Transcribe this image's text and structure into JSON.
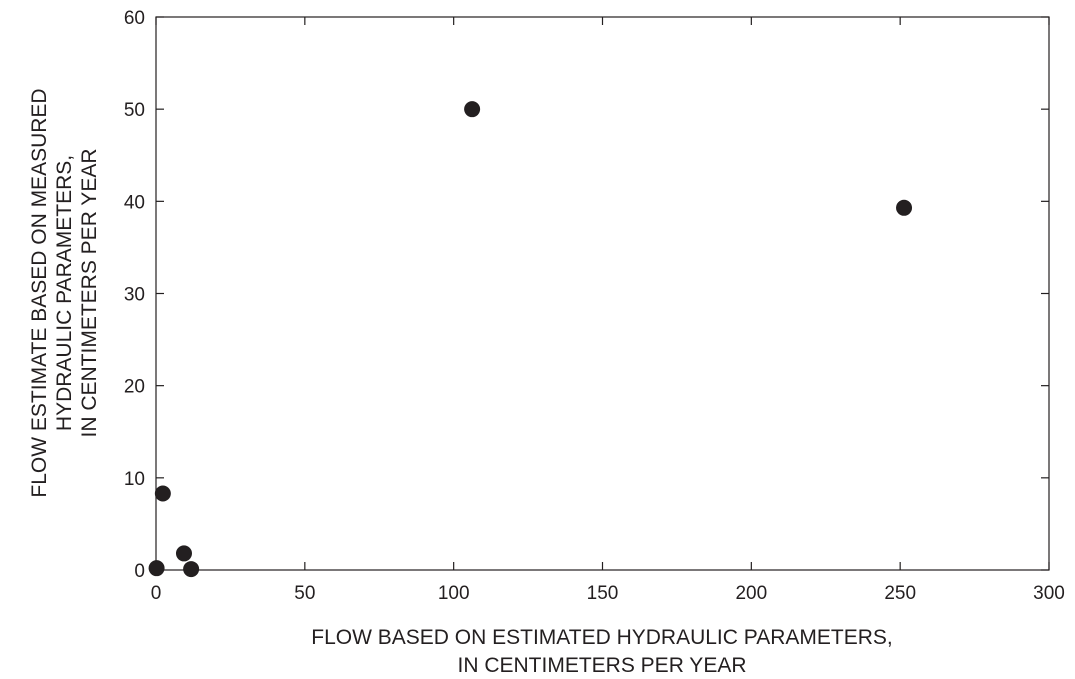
{
  "chart_data": {
    "type": "scatter",
    "xlabel": [
      "FLOW BASED ON ESTIMATED HYDRAULIC PARAMETERS,",
      "IN CENTIMETERS PER YEAR"
    ],
    "ylabel": [
      "FLOW ESTIMATE BASED ON MEASURED",
      "HYDRAULIC PARAMETERS,",
      "IN CENTIMETERS PER YEAR"
    ],
    "xlim": [
      0,
      300
    ],
    "ylim": [
      0,
      60
    ],
    "xticks": [
      0,
      50,
      100,
      150,
      200,
      250,
      300
    ],
    "yticks": [
      0,
      10,
      20,
      30,
      40,
      50,
      60
    ],
    "grid": false,
    "marker_color": "#231f20",
    "points": [
      {
        "x": 0.2,
        "y": 0.2
      },
      {
        "x": 2.3,
        "y": 8.3
      },
      {
        "x": 9.4,
        "y": 1.8
      },
      {
        "x": 11.8,
        "y": 0.1
      },
      {
        "x": 106.2,
        "y": 50.0
      },
      {
        "x": 251.3,
        "y": 39.3
      }
    ]
  }
}
